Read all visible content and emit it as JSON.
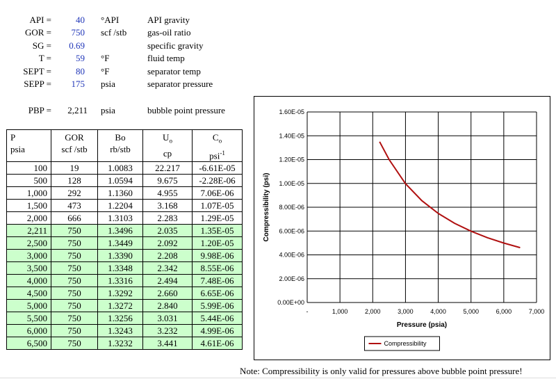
{
  "params": [
    {
      "label": "API =",
      "value": "40",
      "unit": "°API",
      "desc": "API gravity"
    },
    {
      "label": "GOR =",
      "value": "750",
      "unit": "scf /stb",
      "desc": "gas-oil ratio"
    },
    {
      "label": "SG =",
      "value": "0.69",
      "unit": "",
      "desc": "specific gravity"
    },
    {
      "label": "T =",
      "value": "59",
      "unit": "°F",
      "desc": "fluid temp"
    },
    {
      "label": "SEPT =",
      "value": "80",
      "unit": "°F",
      "desc": "separator temp"
    },
    {
      "label": "SEPP =",
      "value": "175",
      "unit": "psia",
      "desc": "separator pressure"
    }
  ],
  "pbp": {
    "label": "PBP =",
    "value": "2,211",
    "unit": "psia",
    "desc": "bubble point pressure"
  },
  "table": {
    "headers": {
      "p": "P",
      "p_unit": "psia",
      "gor": "GOR",
      "gor_unit": "scf /stb",
      "bo": "Bo",
      "bo_unit": "rb/stb",
      "uo": "U",
      "uo_sub": "o",
      "uo_unit": "cp",
      "co": "C",
      "co_sub": "o",
      "co_unit": "psi",
      "co_sup": "-1"
    },
    "rows": [
      {
        "p": "100",
        "gor": "19",
        "bo": "1.0083",
        "uo": "22.217",
        "co": "-6.61E-05",
        "above": false
      },
      {
        "p": "500",
        "gor": "128",
        "bo": "1.0594",
        "uo": "9.675",
        "co": "-2.28E-06",
        "above": false
      },
      {
        "p": "1,000",
        "gor": "292",
        "bo": "1.1360",
        "uo": "4.955",
        "co": "7.06E-06",
        "above": false
      },
      {
        "p": "1,500",
        "gor": "473",
        "bo": "1.2204",
        "uo": "3.168",
        "co": "1.07E-05",
        "above": false
      },
      {
        "p": "2,000",
        "gor": "666",
        "bo": "1.3103",
        "uo": "2.283",
        "co": "1.29E-05",
        "above": false
      },
      {
        "p": "2,211",
        "gor": "750",
        "bo": "1.3496",
        "uo": "2.035",
        "co": "1.35E-05",
        "above": true
      },
      {
        "p": "2,500",
        "gor": "750",
        "bo": "1.3449",
        "uo": "2.092",
        "co": "1.20E-05",
        "above": true
      },
      {
        "p": "3,000",
        "gor": "750",
        "bo": "1.3390",
        "uo": "2.208",
        "co": "9.98E-06",
        "above": true
      },
      {
        "p": "3,500",
        "gor": "750",
        "bo": "1.3348",
        "uo": "2.342",
        "co": "8.55E-06",
        "above": true
      },
      {
        "p": "4,000",
        "gor": "750",
        "bo": "1.3316",
        "uo": "2.494",
        "co": "7.48E-06",
        "above": true
      },
      {
        "p": "4,500",
        "gor": "750",
        "bo": "1.3292",
        "uo": "2.660",
        "co": "6.65E-06",
        "above": true
      },
      {
        "p": "5,000",
        "gor": "750",
        "bo": "1.3272",
        "uo": "2.840",
        "co": "5.99E-06",
        "above": true
      },
      {
        "p": "5,500",
        "gor": "750",
        "bo": "1.3256",
        "uo": "3.031",
        "co": "5.44E-06",
        "above": true
      },
      {
        "p": "6,000",
        "gor": "750",
        "bo": "1.3243",
        "uo": "3.232",
        "co": "4.99E-06",
        "above": true
      },
      {
        "p": "6,500",
        "gor": "750",
        "bo": "1.3232",
        "uo": "3.441",
        "co": "4.61E-06",
        "above": true
      }
    ]
  },
  "colors": {
    "value_blue": "#1f35b8",
    "row_green": "#ccffcc",
    "series_red": "#b01010"
  },
  "chart_data": {
    "type": "line",
    "title": "",
    "xlabel": "Pressure (psia)",
    "ylabel": "Compressibility (psi)",
    "xlim": [
      0,
      7000
    ],
    "ylim": [
      0,
      1.6e-05
    ],
    "x_ticks": [
      "-",
      "1,000",
      "2,000",
      "3,000",
      "4,000",
      "5,000",
      "6,000",
      "7,000"
    ],
    "y_ticks": [
      "0.00E+00",
      "2.00E-06",
      "4.00E-06",
      "6.00E-06",
      "8.00E-06",
      "1.00E-05",
      "1.20E-05",
      "1.40E-05",
      "1.60E-05"
    ],
    "grid": true,
    "legend": "bottom",
    "series": [
      {
        "name": "Compressibility",
        "x": [
          2211,
          2500,
          3000,
          3500,
          4000,
          4500,
          5000,
          5500,
          6000,
          6500
        ],
        "y": [
          1.35e-05,
          1.2e-05,
          9.98e-06,
          8.55e-06,
          7.48e-06,
          6.65e-06,
          5.99e-06,
          5.44e-06,
          4.99e-06,
          4.61e-06
        ]
      }
    ]
  },
  "note": "Note: Compressibility is only valid for pressures above bubble point pressure!"
}
